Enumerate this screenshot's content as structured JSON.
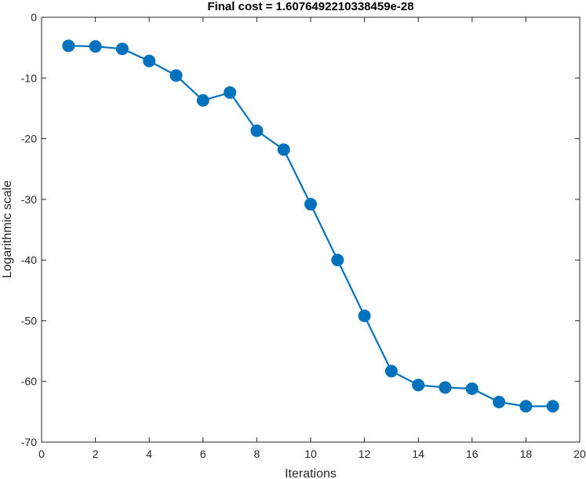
{
  "chart_data": {
    "type": "line",
    "title": "Final cost = 1.6076492210338459e-28",
    "xlabel": "Iterations",
    "ylabel": "Logarithmic scale",
    "xlim": [
      0,
      20
    ],
    "ylim": [
      -70,
      0
    ],
    "xticks": [
      0,
      2,
      4,
      6,
      8,
      10,
      12,
      14,
      16,
      18,
      20
    ],
    "yticks": [
      0,
      -10,
      -20,
      -30,
      -40,
      -50,
      -60,
      -70
    ],
    "grid": false,
    "box": true,
    "series": [
      {
        "color": "#0072bd",
        "marker": "circle",
        "x": [
          1,
          2,
          3,
          4,
          5,
          6,
          7,
          8,
          9,
          10,
          11,
          12,
          13,
          14,
          15,
          16,
          17,
          18,
          19
        ],
        "y": [
          -4.7,
          -4.8,
          -5.2,
          -7.2,
          -9.6,
          -13.7,
          -12.4,
          -18.7,
          -21.8,
          -30.8,
          -40.0,
          -49.2,
          -58.3,
          -60.6,
          -61.0,
          -61.2,
          -63.4,
          -64.1,
          -64.1
        ]
      }
    ]
  }
}
